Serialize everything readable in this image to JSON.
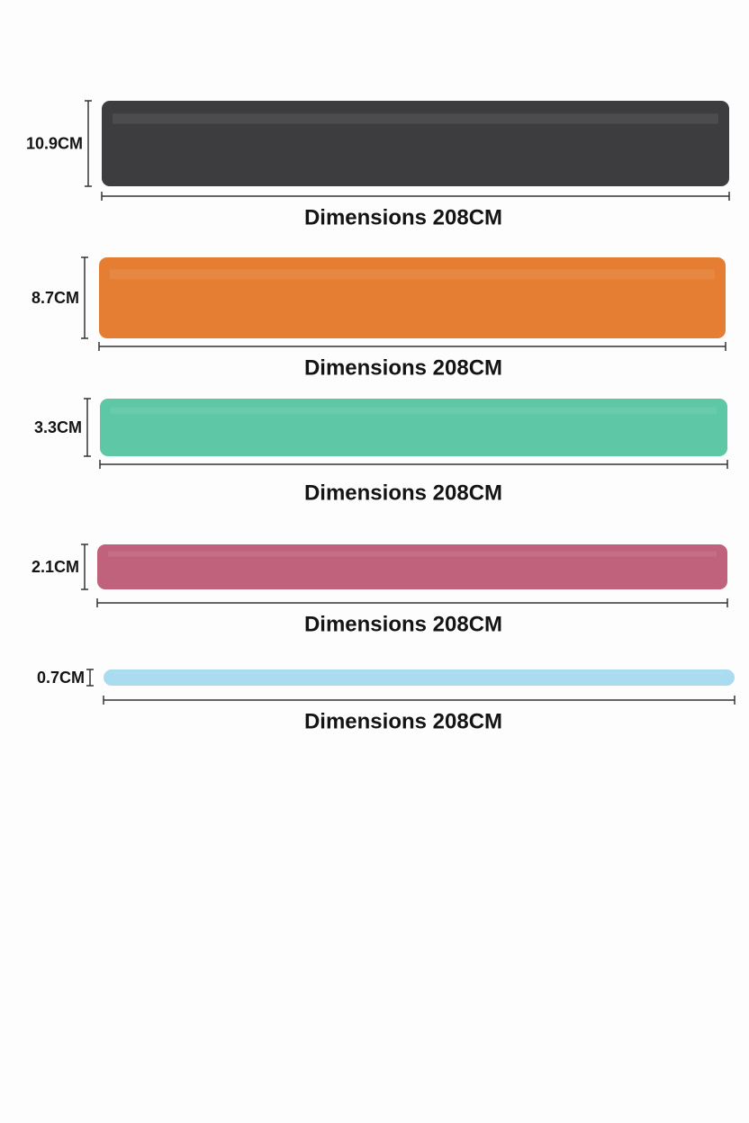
{
  "bands": [
    {
      "width_label": "10.9CM",
      "length_label": "Dimensions 208CM",
      "color": "#3d3d3f"
    },
    {
      "width_label": "8.7CM",
      "length_label": "Dimensions 208CM",
      "color": "#e57e32"
    },
    {
      "width_label": "3.3CM",
      "length_label": "Dimensions 208CM",
      "color": "#5ec7a5"
    },
    {
      "width_label": "2.1CM",
      "length_label": "Dimensions 208CM",
      "color": "#c0627b"
    },
    {
      "width_label": "0.7CM",
      "length_label": "Dimensions 208CM",
      "color": "#a9dcef"
    }
  ]
}
